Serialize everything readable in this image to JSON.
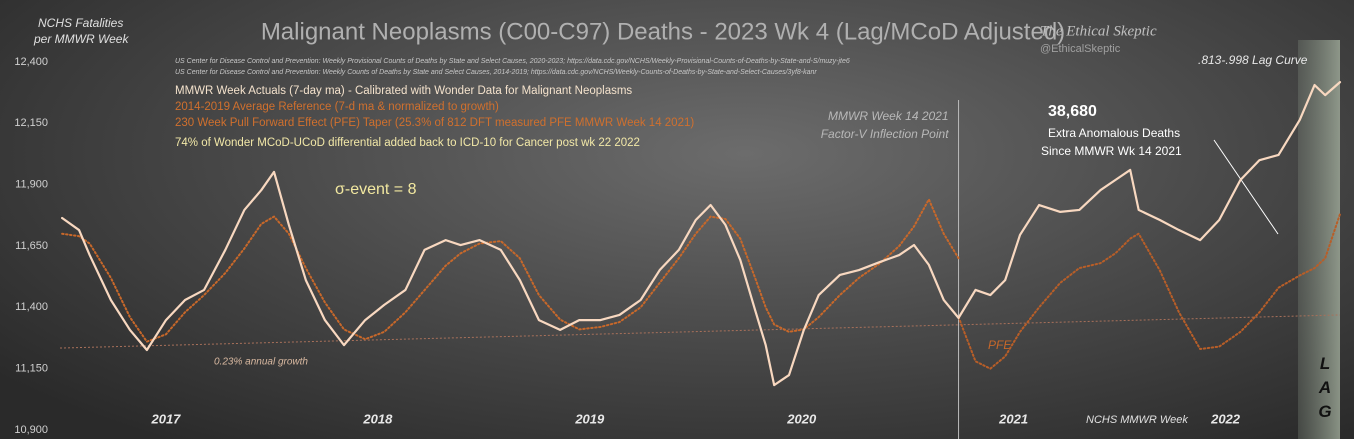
{
  "chart_data": {
    "type": "line",
    "title": "Malignant Neoplasms (C00-C97) Deaths - 2023 Wk 4 (Lag/MCoD Adjusted)",
    "y_label": [
      "NCHS Fatalities",
      "per MMWR Week"
    ],
    "x_label": "NCHS MMWR Week",
    "sources": [
      "US Center for Disease Control and Prevention: Weekly  Provisional Counts of Deaths by State and Select Causes, 2020-2023; https://data.cdc.gov/NCHS/Weekly-Provisional-Counts-of-Deaths-by-State-and-S/muzy-jte6",
      "US Center for Disease Control and Prevention: Weekly  Counts of Deaths by State and Select Causes, 2014-2019; https://data.cdc.gov/NCHS/Weekly-Counts-of-Deaths-by-State-and-Select-Causes/3yf8-kanr"
    ],
    "note": "74% of Wonder MCoD-UCoD  differential added back to ICD-10 for Cancer post wk 22 2022",
    "watermark": [
      "The Ethical Skeptic",
      "@EthicalSkeptic"
    ],
    "sigma_label": "σ-event = 8",
    "excess": {
      "value_label": "38,680",
      "lines": [
        "Extra Anomalous Deaths",
        "Since MMWR Wk 14 2021"
      ]
    },
    "pfe_label": "PFE",
    "lag": {
      "caption": ".813-.998 Lag Curve",
      "label": "LAG"
    },
    "event": {
      "x": 2021.24,
      "label": [
        "MMWR Week 14 2021",
        "Factor-V Inflection Point"
      ]
    },
    "trend": {
      "label": "0.23% annual growth",
      "x": [
        2017.0,
        2023.04
      ],
      "values": [
        11234,
        11369
      ],
      "color": "#a8705a"
    },
    "xlim": [
      2017.0,
      2023.04
    ],
    "xticks": [
      {
        "value": 2017.5,
        "label": "2017"
      },
      {
        "value": 2018.5,
        "label": "2018"
      },
      {
        "value": 2019.5,
        "label": "2019"
      },
      {
        "value": 2020.5,
        "label": "2020"
      },
      {
        "value": 2021.5,
        "label": "2021"
      },
      {
        "value": 2022.5,
        "label": "2022"
      }
    ],
    "ylim": [
      10900,
      12400
    ],
    "yticks": [
      {
        "value": 10900,
        "label": "10,900"
      },
      {
        "value": 11150,
        "label": "11,150"
      },
      {
        "value": 11400,
        "label": "11,400"
      },
      {
        "value": 11650,
        "label": "11,650"
      },
      {
        "value": 11900,
        "label": "11,900"
      },
      {
        "value": 12150,
        "label": "12,150"
      },
      {
        "value": 12400,
        "label": "12,400"
      }
    ],
    "x": [
      2017.01,
      2017.09,
      2017.14,
      2017.24,
      2017.33,
      2017.41,
      2017.5,
      2017.59,
      2017.68,
      2017.78,
      2017.87,
      2017.95,
      2018.01,
      2018.08,
      2018.16,
      2018.25,
      2018.34,
      2018.44,
      2018.53,
      2018.63,
      2018.72,
      2018.82,
      2018.89,
      2018.98,
      2019.08,
      2019.17,
      2019.26,
      2019.36,
      2019.45,
      2019.55,
      2019.64,
      2019.74,
      2019.83,
      2019.92,
      2020.0,
      2020.07,
      2020.14,
      2020.21,
      2020.28,
      2020.33,
      2020.37,
      2020.44,
      2020.51,
      2020.58,
      2020.68,
      2020.77,
      2020.87,
      2020.96,
      2021.03,
      2021.1,
      2021.17,
      2021.24,
      2021.32,
      2021.39,
      2021.46,
      2021.53,
      2021.62,
      2021.72,
      2021.81,
      2021.91,
      2021.98,
      2022.05,
      2022.09,
      2022.19,
      2022.28,
      2022.38,
      2022.47,
      2022.57,
      2022.66,
      2022.75,
      2022.85,
      2022.92,
      2022.97,
      2023.04
    ],
    "series": [
      {
        "name": "MMWR Week Actuals (7-day ma) - Calibrated with Wonder Data for Malignant Neoplasms",
        "color": "#f8d8c0",
        "style": "solid",
        "values": [
          11764,
          11715,
          11613,
          11430,
          11308,
          11226,
          11348,
          11430,
          11471,
          11634,
          11797,
          11878,
          11952,
          11736,
          11511,
          11348,
          11246,
          11348,
          11410,
          11471,
          11634,
          11674,
          11654,
          11674,
          11634,
          11511,
          11348,
          11308,
          11348,
          11348,
          11369,
          11430,
          11552,
          11634,
          11756,
          11817,
          11736,
          11593,
          11389,
          11246,
          11083,
          11124,
          11308,
          11450,
          11532,
          11552,
          11585,
          11613,
          11654,
          11573,
          11430,
          11357,
          11471,
          11450,
          11511,
          11695,
          11817,
          11789,
          11797,
          11878,
          11919,
          11960,
          11797,
          11756,
          11715,
          11674,
          11756,
          11919,
          12000,
          12021,
          12164,
          12306,
          12265,
          12318
        ]
      },
      {
        "name": "2014-2019 Average Reference  (7-d ma & normalized to growth)",
        "color": "#c8682a",
        "style": "dotted",
        "values": [
          11700,
          11690,
          11660,
          11520,
          11360,
          11260,
          11290,
          11380,
          11450,
          11540,
          11640,
          11740,
          11770,
          11700,
          11560,
          11420,
          11310,
          11270,
          11300,
          11380,
          11470,
          11570,
          11620,
          11660,
          11670,
          11600,
          11450,
          11350,
          11310,
          11320,
          11340,
          11400,
          11500,
          11600,
          11700,
          11770,
          11760,
          11680,
          11520,
          11400,
          11330,
          11300,
          11310,
          11360,
          11450,
          11520,
          11580,
          11650,
          11730,
          11840,
          11700,
          11600,
          null,
          null,
          null,
          null,
          null,
          null,
          null,
          null,
          null,
          null,
          null,
          null,
          null,
          null,
          null,
          null,
          null,
          null,
          null,
          null,
          null,
          null
        ]
      },
      {
        "name": "230 Week Pull Forward Effect (PFE) Taper (25.3% of 812 DFT measured PFE MMWR Week 14 2021)",
        "color": "#b85e28",
        "style": "dotted",
        "values": [
          null,
          null,
          null,
          null,
          null,
          null,
          null,
          null,
          null,
          null,
          null,
          null,
          null,
          null,
          null,
          null,
          null,
          null,
          null,
          null,
          null,
          null,
          null,
          null,
          null,
          null,
          null,
          null,
          null,
          null,
          null,
          null,
          null,
          null,
          null,
          null,
          null,
          null,
          null,
          null,
          null,
          null,
          null,
          null,
          null,
          null,
          null,
          null,
          null,
          null,
          null,
          11360,
          11180,
          11150,
          11200,
          11300,
          11400,
          11500,
          11560,
          11580,
          11620,
          11680,
          11700,
          11550,
          11380,
          11230,
          11240,
          11300,
          11380,
          11480,
          11530,
          11560,
          11600,
          11780
        ]
      }
    ]
  }
}
